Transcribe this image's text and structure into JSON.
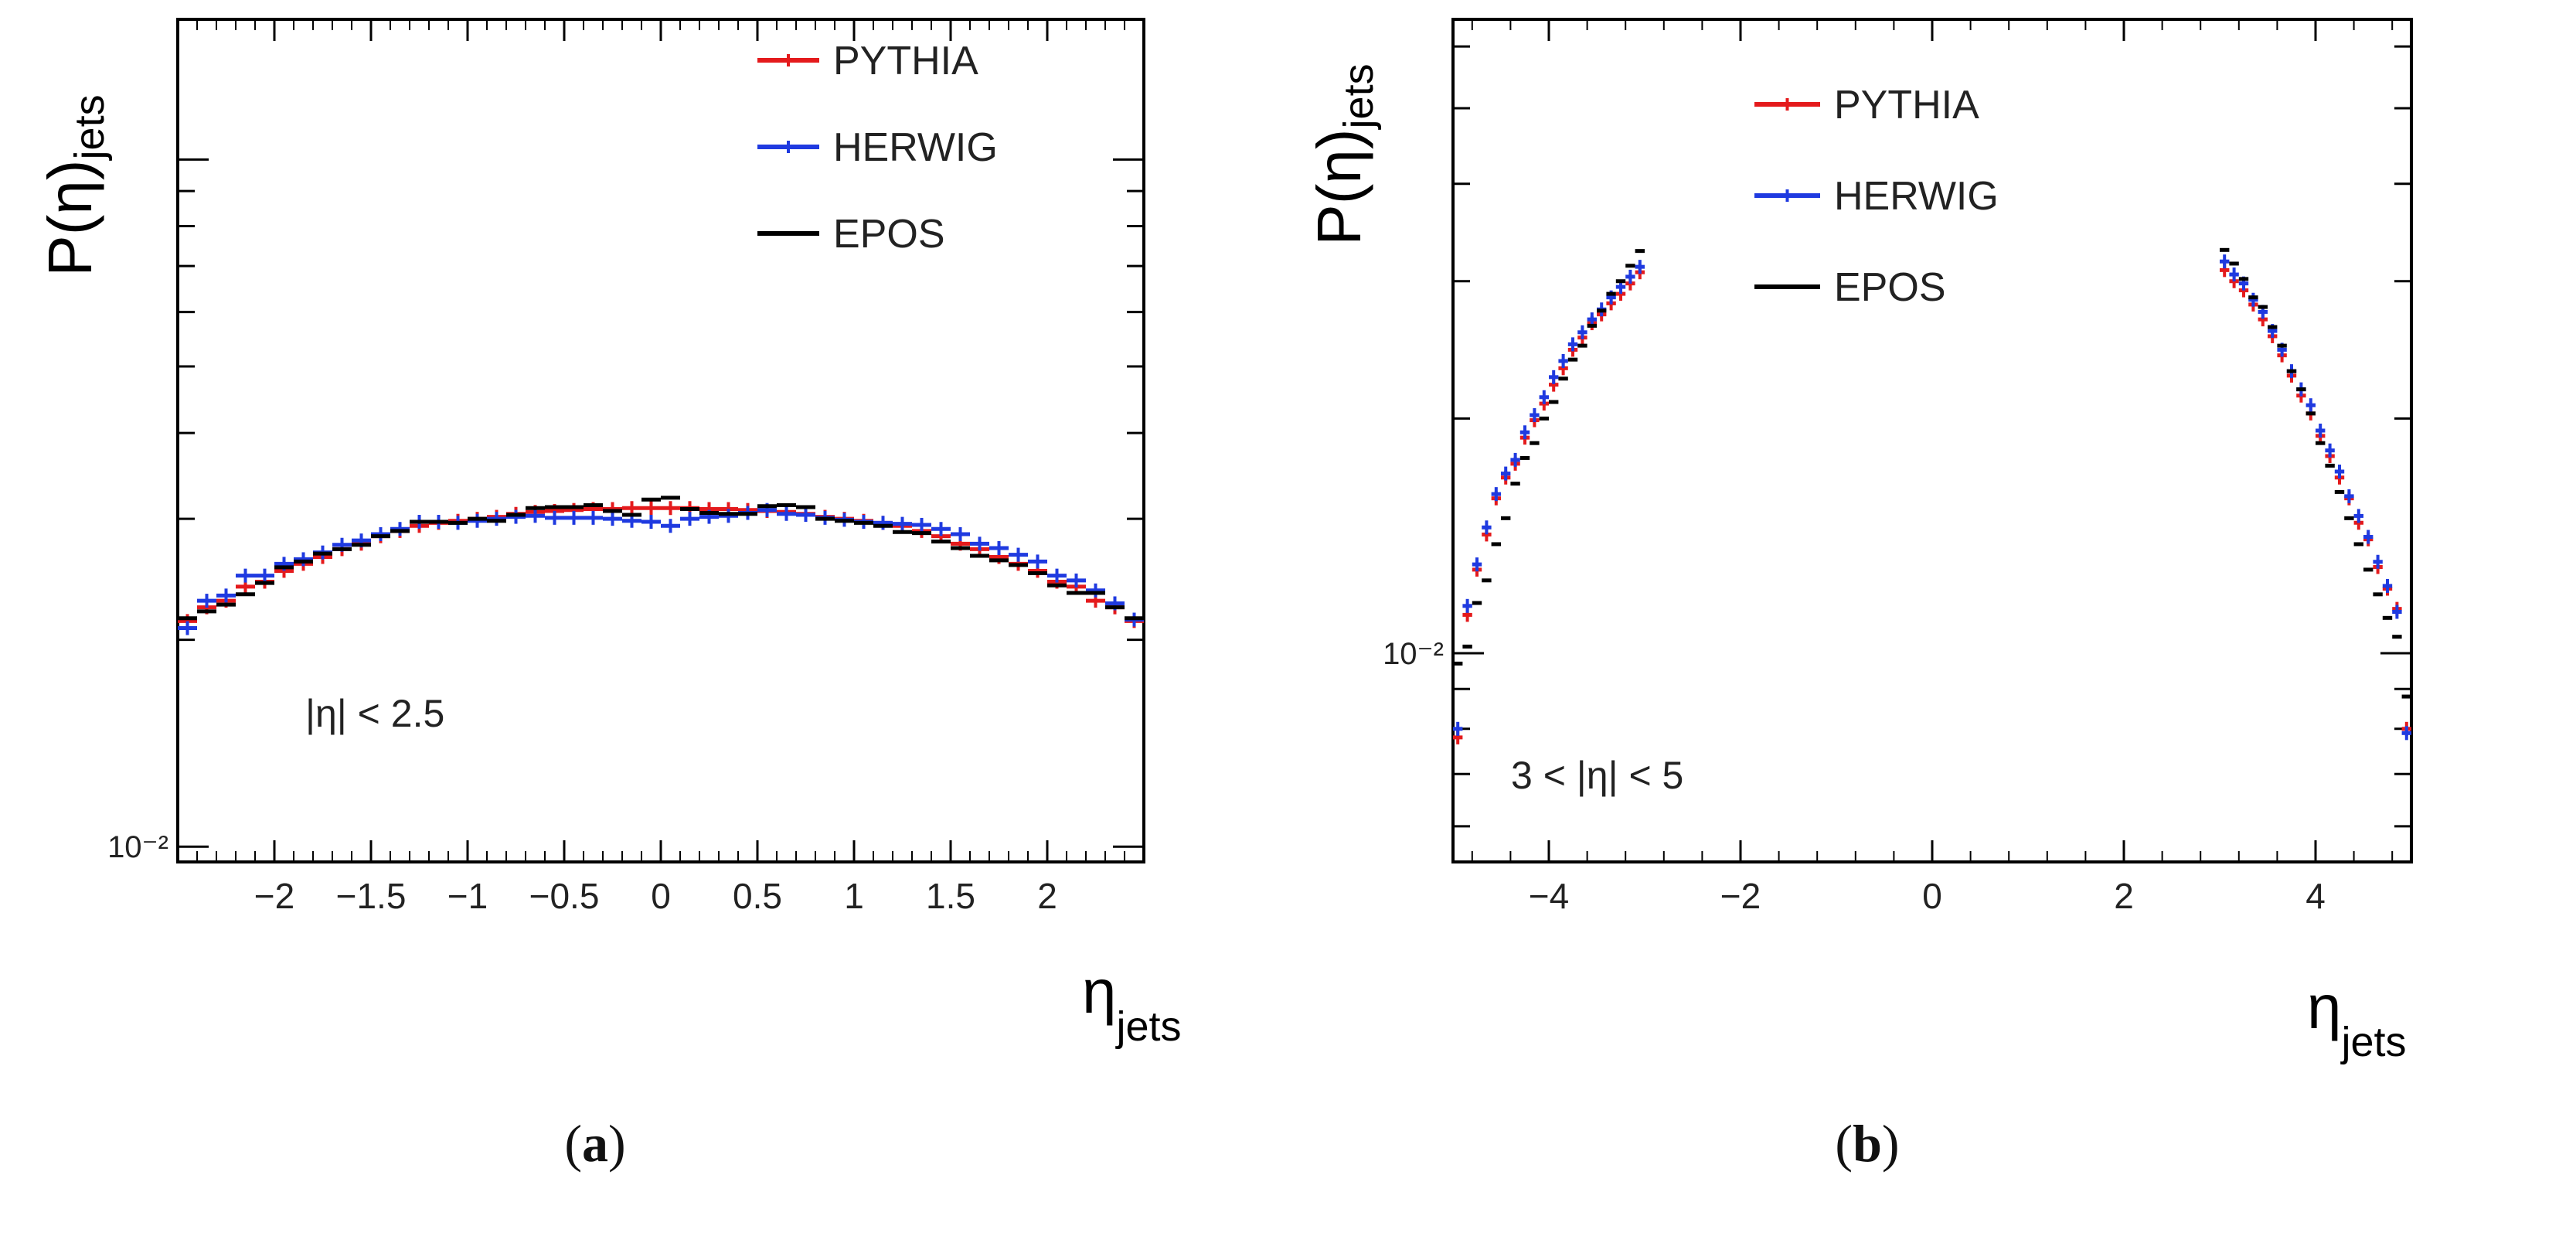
{
  "chart_data": [
    {
      "type": "step",
      "panel": "a",
      "ylabel_main": "P(η)",
      "ylabel_sub": "jets",
      "xlabel_main": "η",
      "xlabel_sub": "jets",
      "yscale": "log",
      "xlim": [
        -2.5,
        2.5
      ],
      "ylim": [
        0.0095,
        0.16
      ],
      "xticks": [
        -2,
        -1.5,
        -1,
        -0.5,
        0,
        0.5,
        1,
        1.5,
        2
      ],
      "xtick_labels": [
        "−2",
        "−1.5",
        "−1",
        "−0.5",
        "0",
        "0.5",
        "1",
        "1.5",
        "2"
      ],
      "ytick_labels": [
        {
          "value": 0.01,
          "text": "10⁻²"
        }
      ],
      "annotation": "|η| < 2.5",
      "legend": [
        "PYTHIA",
        "HERWIG",
        "EPOS"
      ],
      "bin_width": 0.1,
      "series": [
        {
          "name": "PYTHIA",
          "color": "#e41a1c",
          "x": [
            -2.45,
            -2.35,
            -2.25,
            -2.15,
            -2.05,
            -1.95,
            -1.85,
            -1.75,
            -1.65,
            -1.55,
            -1.45,
            -1.35,
            -1.25,
            -1.15,
            -1.05,
            -0.95,
            -0.85,
            -0.75,
            -0.65,
            -0.55,
            -0.45,
            -0.35,
            -0.25,
            -0.15,
            -0.05,
            0.05,
            0.15,
            0.25,
            0.35,
            0.45,
            0.55,
            0.65,
            0.75,
            0.85,
            0.95,
            1.05,
            1.15,
            1.25,
            1.35,
            1.45,
            1.55,
            1.65,
            1.75,
            1.85,
            1.95,
            2.05,
            2.15,
            2.25,
            2.35,
            2.45
          ],
          "values": [
            0.0213,
            0.0223,
            0.0228,
            0.0239,
            0.0243,
            0.0252,
            0.0258,
            0.0264,
            0.0271,
            0.0276,
            0.0283,
            0.0288,
            0.0293,
            0.0296,
            0.0298,
            0.03,
            0.0302,
            0.0305,
            0.0307,
            0.0308,
            0.0309,
            0.031,
            0.031,
            0.0311,
            0.0311,
            0.0311,
            0.0311,
            0.031,
            0.031,
            0.0309,
            0.0308,
            0.0307,
            0.0305,
            0.0302,
            0.03,
            0.0298,
            0.0296,
            0.0293,
            0.0288,
            0.0283,
            0.0276,
            0.0271,
            0.0264,
            0.0258,
            0.0252,
            0.0243,
            0.0239,
            0.0228,
            0.0223,
            0.0213
          ]
        },
        {
          "name": "HERWIG",
          "color": "#1f3ae0",
          "x": [
            -2.45,
            -2.35,
            -2.25,
            -2.15,
            -2.05,
            -1.95,
            -1.85,
            -1.75,
            -1.65,
            -1.55,
            -1.45,
            -1.35,
            -1.25,
            -1.15,
            -1.05,
            -0.95,
            -0.85,
            -0.75,
            -0.65,
            -0.55,
            -0.45,
            -0.35,
            -0.25,
            -0.15,
            -0.05,
            0.05,
            0.15,
            0.25,
            0.35,
            0.45,
            0.55,
            0.65,
            0.75,
            0.85,
            0.95,
            1.05,
            1.15,
            1.25,
            1.35,
            1.45,
            1.55,
            1.65,
            1.75,
            1.85,
            1.95,
            2.05,
            2.15,
            2.25,
            2.35,
            2.45
          ],
          "values": [
            0.0208,
            0.0228,
            0.0232,
            0.0248,
            0.0248,
            0.0258,
            0.0262,
            0.0268,
            0.0275,
            0.0279,
            0.0285,
            0.029,
            0.0297,
            0.0297,
            0.0296,
            0.0298,
            0.03,
            0.0302,
            0.0303,
            0.0301,
            0.0301,
            0.0301,
            0.03,
            0.0298,
            0.0297,
            0.0293,
            0.03,
            0.0302,
            0.0303,
            0.0306,
            0.0309,
            0.0305,
            0.0304,
            0.0301,
            0.0299,
            0.0297,
            0.0296,
            0.0295,
            0.0294,
            0.029,
            0.0285,
            0.0276,
            0.0272,
            0.0266,
            0.026,
            0.0248,
            0.0244,
            0.0236,
            0.0226,
            0.0214
          ]
        },
        {
          "name": "EPOS",
          "color": "#000000",
          "x": [
            -2.45,
            -2.35,
            -2.25,
            -2.15,
            -2.05,
            -1.95,
            -1.85,
            -1.75,
            -1.65,
            -1.55,
            -1.45,
            -1.35,
            -1.25,
            -1.15,
            -1.05,
            -0.95,
            -0.85,
            -0.75,
            -0.65,
            -0.55,
            -0.45,
            -0.35,
            -0.25,
            -0.15,
            -0.05,
            0.05,
            0.15,
            0.25,
            0.35,
            0.45,
            0.55,
            0.65,
            0.75,
            0.85,
            0.95,
            1.05,
            1.15,
            1.25,
            1.35,
            1.45,
            1.55,
            1.65,
            1.75,
            1.85,
            1.95,
            2.05,
            2.15,
            2.25,
            2.35,
            2.45
          ],
          "values": [
            0.0215,
            0.022,
            0.0225,
            0.0233,
            0.0242,
            0.0255,
            0.026,
            0.0267,
            0.0271,
            0.0275,
            0.0283,
            0.0288,
            0.0297,
            0.0297,
            0.0296,
            0.03,
            0.0298,
            0.0304,
            0.0311,
            0.0312,
            0.0312,
            0.0314,
            0.0308,
            0.0304,
            0.032,
            0.0322,
            0.031,
            0.0306,
            0.0305,
            0.0305,
            0.0313,
            0.0314,
            0.0312,
            0.03,
            0.0298,
            0.0296,
            0.0293,
            0.0287,
            0.0286,
            0.0278,
            0.0272,
            0.0265,
            0.0261,
            0.0257,
            0.025,
            0.024,
            0.0234,
            0.0234,
            0.0223,
            0.0215
          ]
        }
      ]
    },
    {
      "type": "step",
      "panel": "b",
      "ylabel_main": "P(η)",
      "ylabel_sub": "jets",
      "xlabel_main": "η",
      "xlabel_sub": "jets",
      "yscale": "log",
      "xlim": [
        -5,
        5
      ],
      "ylim": [
        0.0054,
        0.065
      ],
      "xticks": [
        -4,
        -2,
        0,
        2,
        4
      ],
      "xtick_labels": [
        "−4",
        "−2",
        "0",
        "2",
        "4"
      ],
      "ytick_labels": [
        {
          "value": 0.01,
          "text": "10⁻²"
        }
      ],
      "annotation": "3 < |η| < 5",
      "legend": [
        "PYTHIA",
        "HERWIG",
        "EPOS"
      ],
      "bin_width": 0.1,
      "series": [
        {
          "name": "PYTHIA",
          "color": "#e41a1c",
          "x": [
            -4.95,
            -4.85,
            -4.75,
            -4.65,
            -4.55,
            -4.45,
            -4.35,
            -4.25,
            -4.15,
            -4.05,
            -3.95,
            -3.85,
            -3.75,
            -3.65,
            -3.55,
            -3.45,
            -3.35,
            -3.25,
            -3.15,
            -3.05,
            3.05,
            3.15,
            3.25,
            3.35,
            3.45,
            3.55,
            3.65,
            3.75,
            3.85,
            3.95,
            4.05,
            4.15,
            4.25,
            4.35,
            4.45,
            4.55,
            4.65,
            4.75,
            4.85,
            4.95
          ],
          "values": [
            0.0078,
            0.0112,
            0.0128,
            0.0142,
            0.0158,
            0.0168,
            0.0175,
            0.0189,
            0.0199,
            0.0209,
            0.0221,
            0.0232,
            0.0245,
            0.0254,
            0.0265,
            0.0272,
            0.0281,
            0.0289,
            0.0298,
            0.0308,
            0.031,
            0.03,
            0.0292,
            0.028,
            0.0268,
            0.0255,
            0.0241,
            0.0227,
            0.0214,
            0.0203,
            0.019,
            0.0179,
            0.0168,
            0.0158,
            0.0147,
            0.014,
            0.0129,
            0.0121,
            0.0114,
            0.008
          ]
        },
        {
          "name": "HERWIG",
          "color": "#1f3ae0",
          "x": [
            -4.95,
            -4.85,
            -4.75,
            -4.65,
            -4.55,
            -4.45,
            -4.35,
            -4.25,
            -4.15,
            -4.05,
            -3.95,
            -3.85,
            -3.75,
            -3.65,
            -3.55,
            -3.45,
            -3.35,
            -3.25,
            -3.15,
            -3.05,
            3.05,
            3.15,
            3.25,
            3.35,
            3.45,
            3.55,
            3.65,
            3.75,
            3.85,
            3.95,
            4.05,
            4.15,
            4.25,
            4.35,
            4.45,
            4.55,
            4.65,
            4.75,
            4.85,
            4.95
          ],
          "values": [
            0.008,
            0.0115,
            0.013,
            0.0145,
            0.016,
            0.017,
            0.0177,
            0.0192,
            0.0202,
            0.0213,
            0.0226,
            0.0237,
            0.0249,
            0.0258,
            0.0268,
            0.0276,
            0.0286,
            0.0295,
            0.0304,
            0.0313,
            0.0318,
            0.0306,
            0.0298,
            0.0284,
            0.0274,
            0.0259,
            0.0245,
            0.023,
            0.0218,
            0.0208,
            0.0193,
            0.0182,
            0.0171,
            0.0159,
            0.015,
            0.0141,
            0.0131,
            0.0122,
            0.0113,
            0.0079
          ]
        },
        {
          "name": "EPOS",
          "color": "#000000",
          "x": [
            -4.95,
            -4.85,
            -4.75,
            -4.65,
            -4.55,
            -4.45,
            -4.35,
            -4.25,
            -4.15,
            -4.05,
            -3.95,
            -3.85,
            -3.75,
            -3.65,
            -3.55,
            -3.45,
            -3.35,
            -3.25,
            -3.15,
            -3.05,
            3.05,
            3.15,
            3.25,
            3.35,
            3.45,
            3.55,
            3.65,
            3.75,
            3.85,
            3.95,
            4.05,
            4.15,
            4.25,
            4.35,
            4.45,
            4.55,
            4.65,
            4.75,
            4.85,
            4.95
          ],
          "values": [
            0.0097,
            0.0102,
            0.0116,
            0.0124,
            0.0138,
            0.0149,
            0.0165,
            0.0178,
            0.0186,
            0.02,
            0.021,
            0.0225,
            0.0238,
            0.0248,
            0.0263,
            0.0275,
            0.0289,
            0.03,
            0.0314,
            0.0328,
            0.0329,
            0.0316,
            0.0302,
            0.0286,
            0.0278,
            0.0262,
            0.0248,
            0.023,
            0.0218,
            0.0203,
            0.0186,
            0.0174,
            0.0161,
            0.0149,
            0.0138,
            0.0128,
            0.0119,
            0.0111,
            0.0105,
            0.0088
          ]
        }
      ]
    }
  ],
  "captions": {
    "a_open": "(",
    "a_letter": "a",
    "a_close": ")",
    "b_open": "(",
    "b_letter": "b",
    "b_close": ")"
  }
}
